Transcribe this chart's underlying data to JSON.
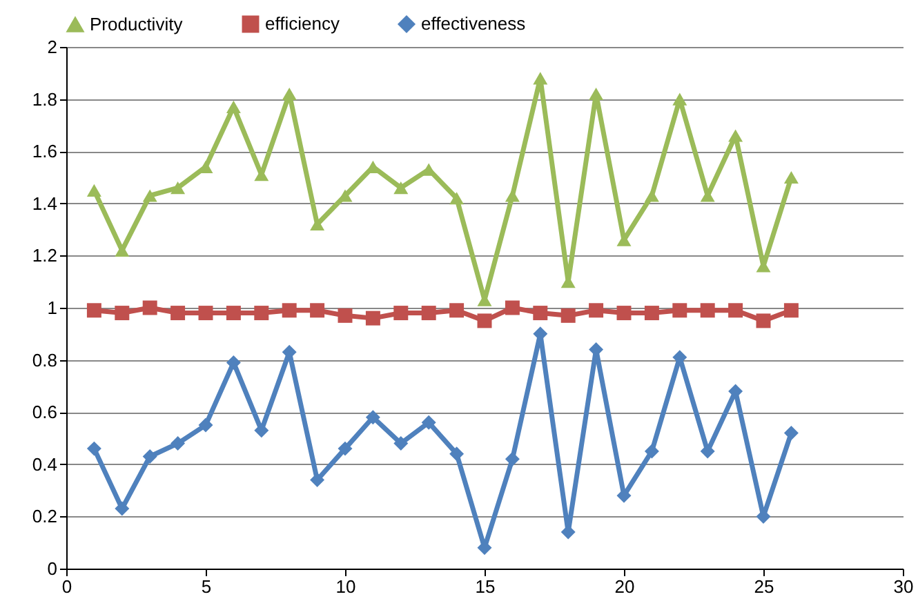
{
  "chart_data": {
    "type": "line",
    "x": [
      1,
      2,
      3,
      4,
      5,
      6,
      7,
      8,
      9,
      10,
      11,
      12,
      13,
      14,
      15,
      16,
      17,
      18,
      19,
      20,
      21,
      22,
      23,
      24,
      25,
      26
    ],
    "series": [
      {
        "name": "Productivity",
        "color": "#9bbb59",
        "marker": "triangle",
        "values": [
          1.45,
          1.22,
          1.43,
          1.46,
          1.54,
          1.77,
          1.51,
          1.82,
          1.32,
          1.43,
          1.54,
          1.46,
          1.53,
          1.42,
          1.03,
          1.43,
          1.88,
          1.1,
          1.82,
          1.26,
          1.43,
          1.8,
          1.43,
          1.66,
          1.16,
          1.5
        ]
      },
      {
        "name": "efficiency",
        "color": "#c0504d",
        "marker": "square",
        "values": [
          0.99,
          0.98,
          1.0,
          0.98,
          0.98,
          0.98,
          0.98,
          0.99,
          0.99,
          0.97,
          0.96,
          0.98,
          0.98,
          0.99,
          0.95,
          1.0,
          0.98,
          0.97,
          0.99,
          0.98,
          0.98,
          0.99,
          0.99,
          0.99,
          0.95,
          0.99
        ]
      },
      {
        "name": "effectiveness",
        "color": "#4f81bd",
        "marker": "diamond",
        "values": [
          0.46,
          0.23,
          0.43,
          0.48,
          0.55,
          0.79,
          0.53,
          0.83,
          0.34,
          0.46,
          0.58,
          0.48,
          0.56,
          0.44,
          0.08,
          0.42,
          0.9,
          0.14,
          0.84,
          0.28,
          0.45,
          0.81,
          0.45,
          0.68,
          0.2,
          0.52
        ]
      }
    ],
    "xlim": [
      0,
      30
    ],
    "xticks": [
      0,
      5,
      10,
      15,
      20,
      25,
      30
    ],
    "ylim": [
      0,
      2
    ],
    "yticks": [
      0,
      0.2,
      0.4,
      0.6,
      0.8,
      1,
      1.2,
      1.4,
      1.6,
      1.8,
      2
    ],
    "grid": "y",
    "legend": "top",
    "line_style": "solid"
  }
}
